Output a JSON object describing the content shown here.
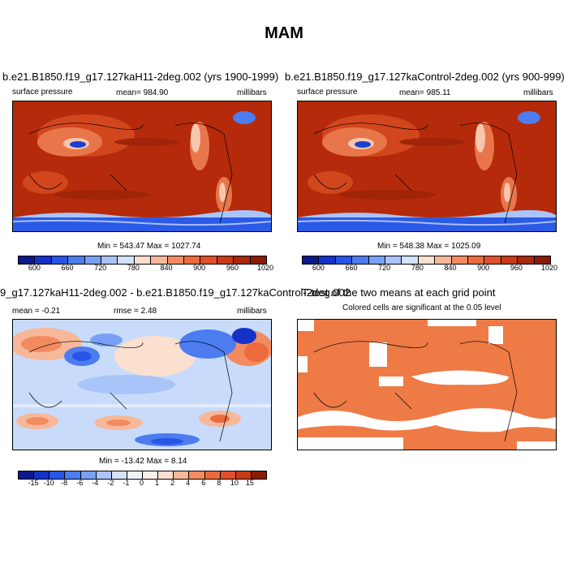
{
  "figure_title": "MAM",
  "panels": [
    {
      "title": "b.e21.B1850.f19_g17.127kaH11-2deg.002 (yrs 1900-1999)",
      "left_label": "surface pressure",
      "center_label": "mean= 984.90",
      "right_label": "millibars",
      "minmax": "Min = 543.47 Max = 1027.74"
    },
    {
      "title": "b.e21.B1850.f19_g17.127kaControl-2deg.002 (yrs 900-999)",
      "left_label": "surface pressure",
      "center_label": "mean= 985.11",
      "right_label": "millibars",
      "minmax": "Min = 548.38 Max = 1025.09"
    },
    {
      "title": "9_g17.127kaH11-2deg.002 - b.e21.B1850.f19_g17.127kaControl-2deg.002",
      "left_label": "mean =  -0.21",
      "center_label": "rmse =   2.48",
      "right_label": "millibars",
      "minmax": "Min = -13.42 Max =  8.14"
    },
    {
      "title": "T-test of the two means at each grid point",
      "subtitle": "Colored cells are significant at the 0.05 level"
    }
  ],
  "colorbar_abs": {
    "ticks": [
      "600",
      "660",
      "720",
      "780",
      "840",
      "900",
      "960",
      "1020"
    ],
    "colors": [
      "#0a1a8c",
      "#1432c8",
      "#2855e6",
      "#4d7cf0",
      "#7aa0f5",
      "#a9c4f8",
      "#d4e2fb",
      "#fbe0d0",
      "#f7b89a",
      "#f28c60",
      "#ec6a3c",
      "#e0502a",
      "#c83a18",
      "#a82808",
      "#8a1c04"
    ]
  },
  "colorbar_diff": {
    "ticks": [
      "-15",
      "-10",
      "-8",
      "-6",
      "-4",
      "-2",
      "-1",
      "0",
      "1",
      "2",
      "4",
      "6",
      "8",
      "10",
      "15"
    ],
    "colors": [
      "#0a1a8c",
      "#1432c8",
      "#2855e6",
      "#4d7cf0",
      "#7aa0f5",
      "#a9c4f8",
      "#d4e2fb",
      "#eef3fd",
      "#fdf0e6",
      "#fbe0d0",
      "#f7b89a",
      "#f28c60",
      "#ec6a3c",
      "#e0502a",
      "#c83a18",
      "#8a1c04"
    ]
  },
  "significance_color": "#ee7a46"
}
